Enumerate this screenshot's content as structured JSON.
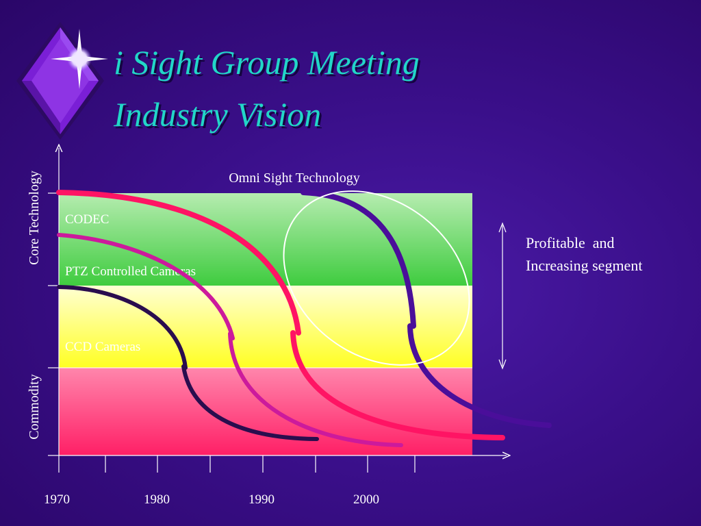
{
  "title": {
    "line1": "i Sight Group Meeting",
    "line2": "Industry Vision"
  },
  "logo": {
    "icon": "diamond-star-icon",
    "colors": [
      "#7a1fd6",
      "#ffffff"
    ]
  },
  "y_axis": {
    "top_label": "Core Technology",
    "bottom_label": "Commodity"
  },
  "x_axis": {
    "ticks": [
      "1970",
      "1980",
      "1990",
      "2000"
    ]
  },
  "bands": [
    {
      "name": "core",
      "colors": [
        "#b6ecb0",
        "#3fcc3f"
      ]
    },
    {
      "name": "middle",
      "colors": [
        "#ffffd4",
        "#ffff22"
      ]
    },
    {
      "name": "commodity",
      "colors": [
        "#ff86ac",
        "#ff1f66"
      ]
    }
  ],
  "band_labels": {
    "codec": "CODEC",
    "ptz": "PTZ Controlled Cameras",
    "ccd": "CCD Cameras"
  },
  "curves": [
    {
      "name": "dark-curve",
      "color": "#2a0d4e"
    },
    {
      "name": "magenta-curve",
      "color": "#cc1a9c"
    },
    {
      "name": "pink-curve",
      "color": "#ff1464"
    },
    {
      "name": "purple-curve",
      "color": "#4a0e9a"
    }
  ],
  "highlight_label": "Omni Sight Technology",
  "side_note": {
    "line1": "Profitable  and",
    "line2": "Increasing segment"
  }
}
